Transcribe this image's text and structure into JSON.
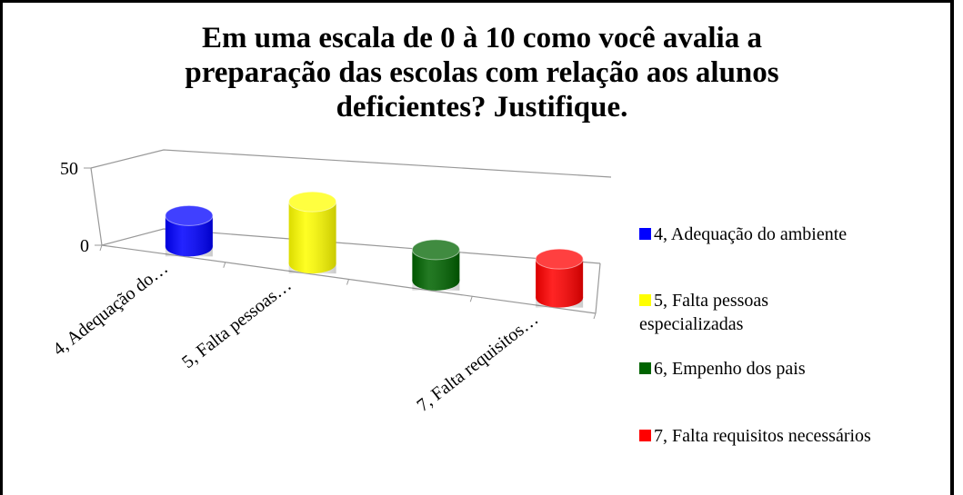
{
  "chart_data": {
    "type": "bar3d-cylinder",
    "title": "Em uma escala de 0 à 10 como você avalia a preparação das escolas com relação aos alunos deficientes? Justifique.",
    "categories": [
      "4, Adequação do…",
      "5, Falta pessoas…",
      null,
      "7, Falta requisitos…"
    ],
    "values": [
      20,
      40,
      20,
      25
    ],
    "colors": [
      "#0000ff",
      "#ffff00",
      "#006400",
      "#ff0000"
    ],
    "legend": [
      "4, Adequação do ambiente",
      "5, Falta pessoas especializadas",
      "6, Empenho dos pais",
      "7, Falta requisitos necessários"
    ],
    "ylim": [
      0,
      50
    ],
    "yticks": [
      0,
      50
    ]
  }
}
